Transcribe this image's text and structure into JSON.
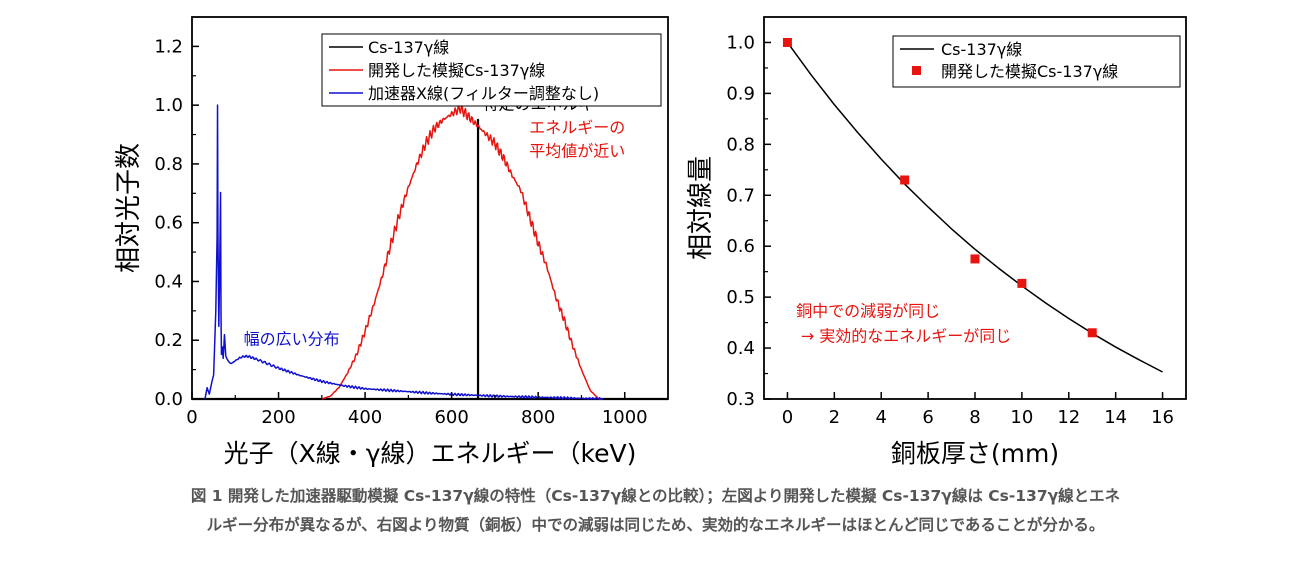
{
  "caption": {
    "line1": "図 1 開発した加速器駆動模擬 Cs-137γ線の特性（Cs-137γ線との比較）；左図より開発した模擬 Cs-137γ線は Cs-137γ線とエネ",
    "line2": "ルギー分布が異なるが、右図より物質（銅板）中での減弱は同じため、実効的なエネルギーはほとんど同じであることが分かる。"
  },
  "colors": {
    "black": "#000000",
    "red": "#e8140f",
    "blue": "#1010d0"
  },
  "chart_data": [
    {
      "type": "line",
      "title": "",
      "xlabel": "光子（X線・γ線）エネルギー（keV)",
      "ylabel": "相対光子数",
      "xlim": [
        0,
        1100
      ],
      "ylim": [
        0,
        1.3
      ],
      "xticks": [
        0,
        200,
        400,
        600,
        800,
        1000
      ],
      "xtick_labels": [
        "0",
        "200",
        "400",
        "600",
        "800",
        "1000"
      ],
      "yticks": [
        0.0,
        0.2,
        0.4,
        0.6,
        0.8,
        1.0,
        1.2
      ],
      "ytick_labels": [
        "0.0",
        "0.2",
        "0.4",
        "0.6",
        "0.8",
        "1.0",
        "1.2"
      ],
      "legend_position": "top-right",
      "series": [
        {
          "name": "Cs-137γ線",
          "color": "#000000",
          "x": [
            0,
            661,
            661,
            661,
            1100
          ],
          "y": [
            0,
            0,
            0.95,
            0,
            0
          ]
        },
        {
          "name": "開発した模擬Cs-137γ線",
          "color": "#e8140f",
          "x": [
            300,
            320,
            340,
            360,
            380,
            400,
            420,
            440,
            460,
            480,
            500,
            520,
            540,
            560,
            580,
            600,
            620,
            640,
            660,
            680,
            700,
            720,
            740,
            760,
            780,
            800,
            820,
            840,
            860,
            880,
            900,
            920,
            940,
            950
          ],
          "y": [
            0.0,
            0.01,
            0.04,
            0.09,
            0.15,
            0.23,
            0.32,
            0.42,
            0.53,
            0.63,
            0.72,
            0.8,
            0.87,
            0.92,
            0.95,
            0.97,
            0.99,
            0.96,
            0.93,
            0.9,
            0.87,
            0.82,
            0.76,
            0.71,
            0.62,
            0.53,
            0.45,
            0.35,
            0.27,
            0.18,
            0.1,
            0.03,
            0.0,
            0.0
          ]
        },
        {
          "name": "加速器X線(フィルター調整なし)",
          "color": "#1010d0",
          "x": [
            30,
            35,
            40,
            45,
            50,
            55,
            58,
            59,
            60,
            62,
            64,
            66,
            67,
            68,
            70,
            72,
            75,
            78,
            80,
            85,
            90,
            100,
            110,
            120,
            130,
            140,
            150,
            175,
            200,
            250,
            300,
            350,
            400,
            450,
            500,
            550,
            600,
            650,
            700,
            750,
            800,
            850,
            900,
            950
          ],
          "y": [
            0.0,
            0.04,
            0.02,
            0.05,
            0.08,
            0.3,
            0.55,
            1.0,
            0.55,
            0.25,
            0.45,
            0.7,
            0.3,
            0.15,
            0.18,
            0.14,
            0.22,
            0.15,
            0.14,
            0.13,
            0.12,
            0.13,
            0.14,
            0.145,
            0.145,
            0.14,
            0.135,
            0.12,
            0.105,
            0.08,
            0.06,
            0.045,
            0.035,
            0.03,
            0.025,
            0.02,
            0.016,
            0.013,
            0.01,
            0.008,
            0.006,
            0.004,
            0.002,
            0.0
          ]
        }
      ],
      "annotations": [
        {
          "text": "特定のエネルギー",
          "x": 662,
          "y": 0.985,
          "color": "#000000"
        },
        {
          "text": "エネルギーの",
          "x": 770,
          "y": 0.905,
          "color": "#e8140f"
        },
        {
          "text": "平均値が近い",
          "x": 770,
          "y": 0.825,
          "color": "#e8140f"
        },
        {
          "text": "幅の広い分布",
          "x": 110,
          "y": 0.185,
          "color": "#1010d0"
        }
      ]
    },
    {
      "type": "scatter",
      "title": "",
      "xlabel": "銅板厚さ(mm)",
      "ylabel": "相対線量",
      "xlim": [
        -1,
        17
      ],
      "ylim": [
        0.3,
        1.05
      ],
      "xticks": [
        0,
        2,
        4,
        6,
        8,
        10,
        12,
        14,
        16
      ],
      "xtick_labels": [
        "0",
        "2",
        "4",
        "6",
        "8",
        "10",
        "12",
        "14",
        "16"
      ],
      "yticks": [
        0.3,
        0.4,
        0.5,
        0.6,
        0.7,
        0.8,
        0.9,
        1.0
      ],
      "ytick_labels": [
        "0.3",
        "0.4",
        "0.5",
        "0.6",
        "0.7",
        "0.8",
        "0.9",
        "1.0"
      ],
      "legend_position": "top-right",
      "series": [
        {
          "name": "Cs-137γ線",
          "type": "line",
          "color": "#000000",
          "x": [
            0,
            1,
            2,
            3,
            4,
            5,
            6,
            7,
            8,
            9,
            10,
            11,
            12,
            13,
            14,
            15,
            16
          ],
          "y": [
            1.0,
            0.937,
            0.878,
            0.823,
            0.771,
            0.722,
            0.677,
            0.634,
            0.594,
            0.557,
            0.522,
            0.489,
            0.458,
            0.429,
            0.402,
            0.377,
            0.353
          ]
        },
        {
          "name": "開発した模擬Cs-137γ線",
          "type": "scatter",
          "color": "#e8140f",
          "x": [
            0,
            5,
            8,
            10,
            13
          ],
          "y": [
            1.0,
            0.73,
            0.575,
            0.527,
            0.43
          ]
        }
      ],
      "annotations": [
        {
          "text": "銅中での減弱が同じ",
          "x": 0.2,
          "y": 0.462,
          "color": "#e8140f"
        },
        {
          "text": "→ 実効的なエネルギーが同じ",
          "x": 0.4,
          "y": 0.413,
          "color": "#e8140f"
        }
      ]
    }
  ]
}
